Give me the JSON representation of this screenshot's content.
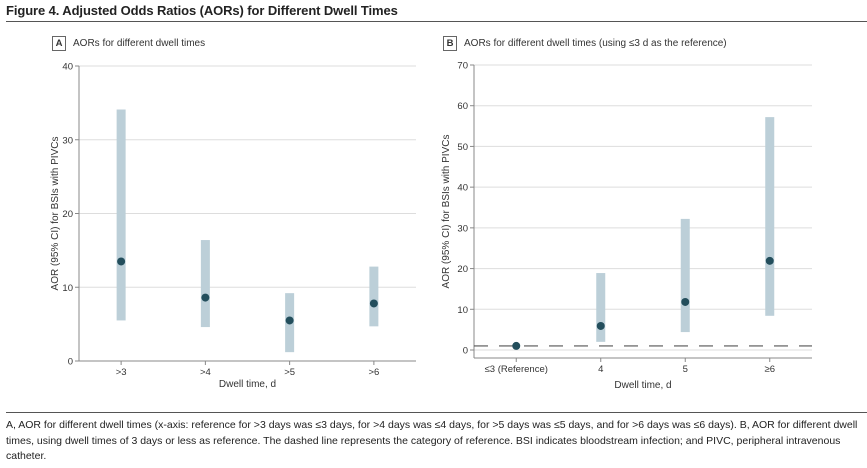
{
  "figure": {
    "title": "Figure 4. Adjusted Odds Ratios (AORs) for Different Dwell Times",
    "caption": "A, AOR for different dwell times (x-axis: reference for >3 days was ≤3 days, for >4 days was ≤4 days, for >5 days was ≤5 days, and for >6 days was ≤6 days). B, AOR for different dwell times, using dwell times of 3 days or less as reference. The dashed line represents the category of reference. BSI indicates bloodstream infection; and PIVC, peripheral intravenous catheter."
  },
  "colors": {
    "ci_bar": "#bccfd8",
    "point": "#234e5c",
    "grid": "#dddddd",
    "axis": "#888888",
    "reference_line": "#555555"
  },
  "chart_data": [
    {
      "type": "scatter",
      "subtype": "point-with-ci-bars",
      "panel": "A",
      "title": "AORs for different dwell times",
      "xlabel": "Dwell time, d",
      "ylabel": "AOR (95% CI) for BSIs with PIVCs",
      "categories": [
        ">3",
        ">4",
        ">5",
        ">6"
      ],
      "ylim": [
        0,
        40
      ],
      "yticks": [
        0,
        10,
        20,
        30,
        40
      ],
      "grid": true,
      "series": [
        {
          "name": "AOR",
          "values": [
            13.5,
            8.6,
            5.5,
            7.8
          ],
          "ci_lower": [
            5.5,
            4.6,
            1.2,
            4.7
          ],
          "ci_upper": [
            34.1,
            16.4,
            9.2,
            12.8
          ]
        }
      ]
    },
    {
      "type": "scatter",
      "subtype": "point-with-ci-bars",
      "panel": "B",
      "title": "AORs for different dwell times (using ≤3 d as the reference)",
      "xlabel": "Dwell time, d",
      "ylabel": "AOR (95% CI) for BSIs with PIVCs",
      "categories": [
        "≤3 (Reference)",
        "4",
        "5",
        "≥6"
      ],
      "ylim": [
        0,
        70
      ],
      "yticks": [
        0,
        10,
        20,
        30,
        40,
        50,
        60,
        70
      ],
      "grid": true,
      "reference_line": 1,
      "series": [
        {
          "name": "AOR",
          "values": [
            1.0,
            5.9,
            11.8,
            21.9
          ],
          "ci_lower": [
            null,
            2.0,
            4.4,
            8.4
          ],
          "ci_upper": [
            null,
            18.9,
            32.2,
            57.2
          ]
        }
      ]
    }
  ]
}
